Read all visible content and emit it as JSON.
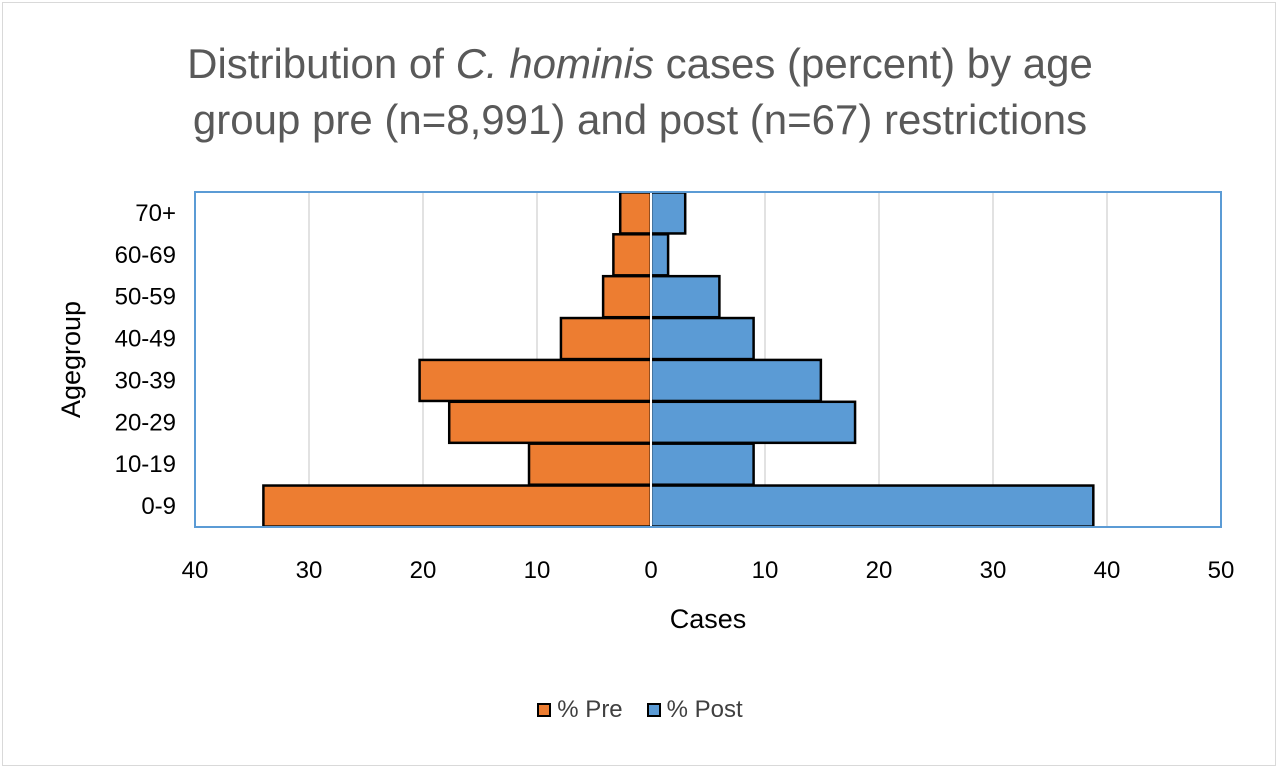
{
  "title": {
    "prefix": "Distribution of ",
    "species": "C. hominis",
    "suffix": " cases (percent) by age",
    "line2": "group pre (n=8,991) and post (n=67) restrictions"
  },
  "colors": {
    "pre": "#ED7D31",
    "post": "#5B9BD5",
    "plot_border": "#5B9BD5",
    "grid": "#d9d9d9"
  },
  "chart_data": {
    "type": "bar",
    "orientation": "horizontal-diverging",
    "categories": [
      "0-9",
      "10-19",
      "20-29",
      "30-39",
      "40-49",
      "50-59",
      "60-69",
      "70+"
    ],
    "series": [
      {
        "name": "% Pre",
        "side": "left",
        "values": [
          34,
          10.7,
          17.7,
          20.3,
          7.9,
          4.2,
          3.3,
          2.7
        ]
      },
      {
        "name": "% Post",
        "side": "right",
        "values": [
          38.8,
          9,
          17.9,
          14.9,
          9,
          6,
          1.5,
          3
        ]
      }
    ],
    "xlabel": "Cases",
    "ylabel": "Agegroup",
    "xlim": [
      -40,
      50
    ],
    "x_ticks": [
      -40,
      -30,
      -20,
      -10,
      0,
      10,
      20,
      30,
      40,
      50
    ],
    "x_tick_labels": [
      "40",
      "30",
      "20",
      "10",
      "0",
      "10",
      "20",
      "30",
      "40",
      "50"
    ],
    "grid": true,
    "legend_position": "bottom"
  }
}
